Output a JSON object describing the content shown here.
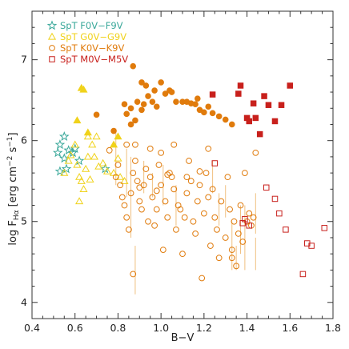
{
  "chart_data": {
    "type": "scatter",
    "xlabel": "B−V",
    "ylabel": "log F",
    "ylabel_sub": "Hα",
    "ylabel_units": " [erg cm",
    "ylabel_exp1": "−2",
    "ylabel_s": " s",
    "ylabel_exp2": "−1",
    "ylabel_close": "]",
    "xlim": [
      0.4,
      1.8
    ],
    "ylim": [
      3.8,
      7.6
    ],
    "x_ticks": [
      0.4,
      0.6,
      0.8,
      1.0,
      1.2,
      1.4,
      1.6,
      1.8
    ],
    "x_tick_labels": [
      "0.4",
      "0.6",
      "0.8",
      "1.0",
      "1.2",
      "1.4",
      "1.6",
      "1.8"
    ],
    "y_ticks": [
      4,
      5,
      6,
      7
    ],
    "y_tick_labels": [
      "4",
      "5",
      "6",
      "7"
    ],
    "legend_position": "top-left",
    "series": [
      {
        "name": "SpT F0V−F9V",
        "color": "#3aa89a",
        "marker": "star",
        "open": [
          [
            0.52,
            5.85
          ],
          [
            0.53,
            5.95
          ],
          [
            0.55,
            6.05
          ],
          [
            0.53,
            5.62
          ],
          [
            0.55,
            5.78
          ],
          [
            0.57,
            5.88
          ],
          [
            0.59,
            5.85
          ],
          [
            0.6,
            5.9
          ],
          [
            0.56,
            5.65
          ],
          [
            0.62,
            5.75
          ],
          [
            0.74,
            5.65
          ]
        ],
        "filled": []
      },
      {
        "name": "SpT G0V−G9V",
        "color": "#f0d21a",
        "marker": "triangle",
        "open": [
          [
            0.55,
            5.6
          ],
          [
            0.57,
            5.75
          ],
          [
            0.58,
            5.82
          ],
          [
            0.6,
            5.95
          ],
          [
            0.61,
            5.7
          ],
          [
            0.62,
            5.55
          ],
          [
            0.63,
            5.5
          ],
          [
            0.64,
            5.4
          ],
          [
            0.65,
            5.65
          ],
          [
            0.66,
            5.8
          ],
          [
            0.67,
            5.52
          ],
          [
            0.62,
            5.25
          ],
          [
            0.68,
            5.95
          ],
          [
            0.71,
            5.68
          ],
          [
            0.73,
            5.72
          ],
          [
            0.75,
            5.62
          ],
          [
            0.78,
            5.6
          ],
          [
            0.8,
            5.78
          ],
          [
            0.81,
            5.55
          ],
          [
            0.83,
            5.5
          ],
          [
            0.7,
            6.05
          ],
          [
            0.69,
            5.8
          ],
          [
            0.66,
            6.05
          ]
        ],
        "filled": [
          [
            0.63,
            6.65
          ],
          [
            0.64,
            6.63
          ],
          [
            0.61,
            6.25
          ],
          [
            0.66,
            6.1
          ],
          [
            0.8,
            6.05
          ],
          [
            0.78,
            5.95
          ]
        ]
      },
      {
        "name": "SpT K0V−K9V",
        "color": "#e07b0c",
        "marker": "circle",
        "open": [
          [
            0.76,
            5.88
          ],
          [
            0.79,
            5.55
          ],
          [
            0.8,
            5.7
          ],
          [
            0.81,
            5.45
          ],
          [
            0.82,
            5.3
          ],
          [
            0.83,
            5.2
          ],
          [
            0.84,
            5.05
          ],
          [
            0.85,
            4.9
          ],
          [
            0.86,
            5.35
          ],
          [
            0.87,
            5.6
          ],
          [
            0.88,
            5.75
          ],
          [
            0.89,
            5.5
          ],
          [
            0.9,
            5.25
          ],
          [
            0.91,
            5.15
          ],
          [
            0.92,
            5.45
          ],
          [
            0.93,
            5.65
          ],
          [
            0.94,
            5.0
          ],
          [
            0.95,
            5.55
          ],
          [
            0.96,
            5.3
          ],
          [
            0.97,
            4.95
          ],
          [
            0.98,
            5.15
          ],
          [
            0.99,
            5.7
          ],
          [
            1.0,
            5.45
          ],
          [
            1.01,
            4.65
          ],
          [
            1.02,
            5.25
          ],
          [
            1.03,
            5.05
          ],
          [
            1.04,
            5.6
          ],
          [
            1.05,
            5.55
          ],
          [
            1.06,
            5.4
          ],
          [
            1.07,
            4.9
          ],
          [
            1.08,
            5.2
          ],
          [
            1.09,
            5.15
          ],
          [
            1.1,
            4.6
          ],
          [
            1.11,
            5.05
          ],
          [
            1.12,
            5.35
          ],
          [
            1.13,
            5.75
          ],
          [
            1.14,
            5.5
          ],
          [
            1.15,
            5.0
          ],
          [
            1.16,
            4.85
          ],
          [
            1.17,
            5.25
          ],
          [
            1.18,
            5.45
          ],
          [
            1.19,
            4.3
          ],
          [
            1.2,
            5.1
          ],
          [
            1.21,
            5.6
          ],
          [
            1.22,
            5.3
          ],
          [
            1.23,
            4.7
          ],
          [
            1.24,
            5.4
          ],
          [
            1.25,
            5.05
          ],
          [
            1.26,
            4.9
          ],
          [
            1.28,
            5.25
          ],
          [
            1.3,
            4.8
          ],
          [
            1.31,
            5.55
          ],
          [
            1.32,
            5.15
          ],
          [
            1.33,
            4.65
          ],
          [
            1.34,
            5.0
          ],
          [
            1.35,
            4.45
          ],
          [
            1.36,
            4.85
          ],
          [
            1.37,
            5.2
          ],
          [
            1.38,
            4.75
          ],
          [
            1.39,
            5.6
          ],
          [
            1.4,
            5.0
          ],
          [
            1.41,
            5.1
          ],
          [
            1.42,
            4.95
          ],
          [
            1.43,
            5.05
          ],
          [
            1.44,
            5.85
          ],
          [
            0.88,
            5.95
          ],
          [
            0.95,
            5.9
          ],
          [
            1.0,
            5.85
          ],
          [
            1.06,
            5.95
          ],
          [
            0.84,
            5.95
          ],
          [
            0.9,
            5.42
          ],
          [
            0.98,
            5.38
          ],
          [
            1.03,
            5.58
          ],
          [
            1.12,
            5.55
          ],
          [
            1.18,
            5.62
          ],
          [
            1.22,
            5.9
          ],
          [
            0.87,
            4.35
          ],
          [
            1.33,
            4.55
          ],
          [
            1.27,
            4.55
          ]
        ],
        "filled": [
          [
            0.87,
            6.92
          ],
          [
            0.91,
            6.72
          ],
          [
            0.93,
            6.68
          ],
          [
            0.94,
            6.55
          ],
          [
            0.96,
            6.48
          ],
          [
            0.97,
            6.62
          ],
          [
            1.0,
            6.72
          ],
          [
            1.02,
            6.58
          ],
          [
            1.04,
            6.62
          ],
          [
            1.05,
            6.6
          ],
          [
            1.07,
            6.48
          ],
          [
            1.1,
            6.48
          ],
          [
            1.12,
            6.48
          ],
          [
            1.14,
            6.46
          ],
          [
            1.16,
            6.45
          ],
          [
            1.18,
            6.38
          ],
          [
            1.2,
            6.35
          ],
          [
            1.22,
            6.42
          ],
          [
            0.83,
            6.45
          ],
          [
            0.86,
            6.4
          ],
          [
            0.89,
            6.48
          ],
          [
            0.91,
            6.38
          ],
          [
            0.92,
            6.45
          ],
          [
            0.88,
            6.25
          ],
          [
            0.84,
            6.33
          ],
          [
            0.7,
            6.32
          ],
          [
            0.78,
            6.12
          ],
          [
            1.24,
            6.34
          ],
          [
            1.27,
            6.3
          ],
          [
            1.3,
            6.26
          ],
          [
            1.33,
            6.2
          ],
          [
            0.98,
            6.42
          ],
          [
            1.17,
            6.52
          ],
          [
            0.86,
            6.2
          ]
        ]
      },
      {
        "name": "SpT M0V−M5V",
        "color": "#c8201c",
        "marker": "square",
        "open": [
          [
            1.25,
            5.72
          ],
          [
            1.49,
            5.42
          ],
          [
            1.53,
            5.28
          ],
          [
            1.55,
            5.1
          ],
          [
            1.58,
            4.9
          ],
          [
            1.66,
            4.35
          ],
          [
            1.68,
            4.73
          ],
          [
            1.7,
            4.7
          ],
          [
            1.76,
            4.92
          ],
          [
            1.38,
            4.98
          ],
          [
            1.41,
            4.95
          ],
          [
            1.39,
            5.03
          ]
        ],
        "filled": [
          [
            1.24,
            6.57
          ],
          [
            1.36,
            6.58
          ],
          [
            1.37,
            6.68
          ],
          [
            1.4,
            6.28
          ],
          [
            1.43,
            6.46
          ],
          [
            1.44,
            6.28
          ],
          [
            1.46,
            6.08
          ],
          [
            1.48,
            6.55
          ],
          [
            1.5,
            6.44
          ],
          [
            1.53,
            6.24
          ],
          [
            1.56,
            6.44
          ],
          [
            1.6,
            6.68
          ],
          [
            1.41,
            6.24
          ]
        ]
      }
    ],
    "error_bars": [
      [
        0.79,
        5.8,
        0.35
      ],
      [
        0.86,
        5.3,
        0.5
      ],
      [
        0.88,
        4.4,
        0.3
      ],
      [
        0.84,
        5.6,
        0.3
      ],
      [
        1.01,
        5.45,
        0.25
      ],
      [
        1.07,
        5.2,
        0.25
      ],
      [
        1.33,
        4.7,
        0.3
      ],
      [
        1.39,
        4.8,
        0.4
      ],
      [
        1.37,
        4.9,
        0.3
      ],
      [
        1.44,
        5.1,
        0.25
      ],
      [
        1.27,
        5.15,
        0.2
      ],
      [
        1.44,
        4.6,
        0.2
      ],
      [
        1.3,
        5.25,
        0.2
      ],
      [
        0.92,
        5.55,
        0.2
      ],
      [
        0.96,
        5.45,
        0.15
      ],
      [
        1.24,
        5.55,
        0.2
      ],
      [
        1.35,
        4.55,
        0.15
      ]
    ]
  }
}
